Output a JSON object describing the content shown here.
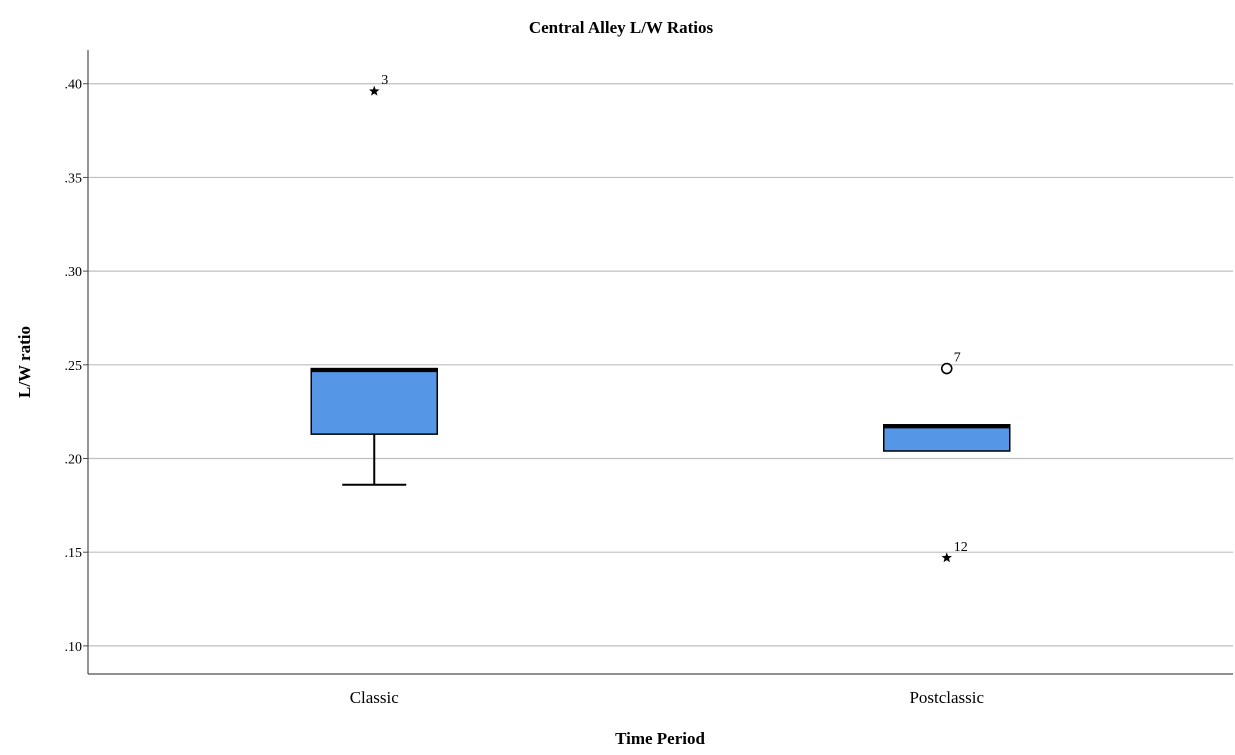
{
  "chart_data": {
    "type": "box",
    "title": "Central Alley L/W Ratios",
    "xlabel": "Time Period",
    "ylabel": "L/W ratio",
    "ylim": [
      0.085,
      0.418
    ],
    "yticks": [
      0.1,
      0.15,
      0.2,
      0.25,
      0.3,
      0.35,
      0.4
    ],
    "ytick_labels": [
      ".10",
      ".15",
      ".20",
      ".25",
      ".30",
      ".35",
      ".40"
    ],
    "grid": true,
    "categories": [
      "Classic",
      "Postclassic"
    ],
    "boxes": [
      {
        "category": "Classic",
        "q1": 0.213,
        "median": 0.247,
        "q3": 0.248,
        "whisker_low": 0.186,
        "whisker_high": 0.248,
        "outliers": [
          {
            "value": 0.396,
            "label": "3",
            "marker": "star"
          }
        ]
      },
      {
        "category": "Postclassic",
        "q1": 0.204,
        "median": 0.217,
        "q3": 0.218,
        "whisker_low": 0.204,
        "whisker_high": 0.218,
        "outliers": [
          {
            "value": 0.248,
            "label": "7",
            "marker": "circle"
          },
          {
            "value": 0.147,
            "label": "12",
            "marker": "star"
          }
        ]
      }
    ],
    "colors": {
      "box_fill": "#5596e6",
      "line": "#000000",
      "grid": "#bfbfbf",
      "axis": "#4d4d4d"
    }
  }
}
